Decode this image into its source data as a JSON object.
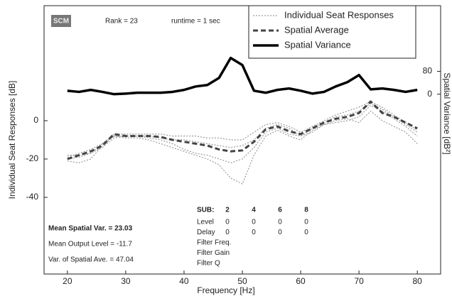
{
  "chart_data": {
    "type": "line",
    "badge": "SCM",
    "rank": "Rank = 23",
    "runtime": "runtime = 1 sec",
    "xlabel": "Frequency [Hz]",
    "ylabel": "Individual Seat Responses  [dB]",
    "y2label": "Spatial Variance  [dB²]",
    "x": [
      20,
      22,
      24,
      26,
      28,
      30,
      32,
      34,
      36,
      38,
      40,
      42,
      44,
      46,
      48,
      50,
      52,
      54,
      56,
      58,
      60,
      62,
      64,
      66,
      68,
      70,
      72,
      74,
      76,
      78,
      80
    ],
    "xlim": [
      16,
      84
    ],
    "xticks": [
      20,
      30,
      40,
      50,
      60,
      70,
      80
    ],
    "ylim": [
      -80,
      60
    ],
    "yticks": [
      -40,
      -20,
      0
    ],
    "y2lim": [
      -630,
      310
    ],
    "y2ticks": [
      0,
      80
    ],
    "legend": "upper right",
    "series": [
      {
        "name": "Individual Seat Responses",
        "color": "#9a9a9a",
        "style": "dotted",
        "lines": [
          [
            -21,
            -22,
            -20,
            -13,
            -8,
            -9,
            -9,
            -10,
            -12,
            -14,
            -16,
            -18,
            -20,
            -23,
            -30,
            -33,
            -18,
            -8,
            -5,
            -8,
            -10,
            -5,
            -2,
            0,
            1,
            -1,
            5,
            0,
            -3,
            -6,
            -12
          ],
          [
            -19,
            -17,
            -15,
            -12,
            -7,
            -7,
            -7,
            -7,
            -7,
            -8,
            -8,
            -8,
            -9,
            -9,
            -10,
            -10,
            -6,
            -2,
            -1,
            -3,
            -6,
            -3,
            0,
            3,
            5,
            7,
            10,
            7,
            3,
            -1,
            -5
          ],
          [
            -20,
            -19,
            -17,
            -14,
            -9,
            -8,
            -8,
            -9,
            -10,
            -12,
            -15,
            -17,
            -18,
            -20,
            -22,
            -20,
            -14,
            -6,
            -4,
            -7,
            -8,
            -6,
            -2,
            -1,
            0,
            2,
            8,
            5,
            1,
            -3,
            -8
          ],
          [
            -18,
            -18,
            -17,
            -12,
            -8,
            -8,
            -8,
            -8,
            -9,
            -10,
            -10,
            -11,
            -12,
            -13,
            -14,
            -13,
            -10,
            -4,
            -2,
            -4,
            -8,
            -4,
            -1,
            2,
            3,
            5,
            9,
            6,
            2,
            -2,
            -6
          ]
        ]
      },
      {
        "name": "Spatial Average",
        "color": "#444444",
        "style": "dashed",
        "values": [
          -20,
          -18,
          -16,
          -13,
          -7,
          -8,
          -8,
          -8,
          -8.5,
          -10,
          -11,
          -12,
          -13,
          -15,
          -16,
          -15.5,
          -11,
          -4.5,
          -3,
          -5.5,
          -7,
          -4,
          -1,
          1,
          2,
          4,
          10,
          4,
          2,
          -1,
          -4
        ]
      },
      {
        "name": "Spatial Variance",
        "color": "#000000",
        "style": "solid",
        "axis": "y2",
        "values": [
          12,
          8,
          15,
          8,
          0,
          2,
          5,
          5,
          5,
          8,
          15,
          27,
          32,
          57,
          127,
          102,
          12,
          5,
          15,
          20,
          12,
          2,
          8,
          27,
          42,
          67,
          17,
          20,
          15,
          8,
          15
        ]
      }
    ],
    "stats": [
      "Mean Spatial Var. = 23.03",
      "Mean Output Level = -11.7",
      "Var. of Spatial Ave. = 47.04"
    ],
    "settings_table": {
      "header": [
        "SUB:",
        2,
        4,
        6,
        8
      ],
      "rows": [
        {
          "label": "Level",
          "values": [
            0,
            0,
            0,
            0
          ]
        },
        {
          "label": "Delay",
          "values": [
            0,
            0,
            0,
            0
          ]
        },
        {
          "label": "Filter Freq.",
          "values": []
        },
        {
          "label": "Filter Gain",
          "values": []
        },
        {
          "label": "Filter  Q",
          "values": []
        }
      ]
    }
  }
}
